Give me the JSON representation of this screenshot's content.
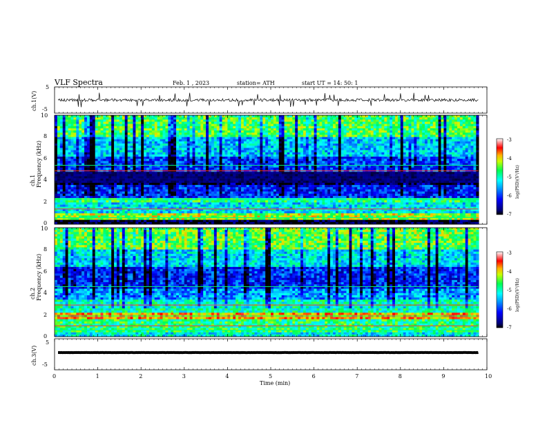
{
  "header": {
    "title": "VLF  Spectra",
    "date": "Feb. 1  , 2023",
    "station": "station= ATH",
    "start": "start  UT  =    14: 50: 1"
  },
  "panels": {
    "ch1": {
      "label": "ch.1(V)",
      "yticks": [
        "5",
        "-5"
      ]
    },
    "spec1": {
      "ylabel": "Frequency (kHz)",
      "chlabel": "ch.1",
      "yticks": [
        "0",
        "2",
        "4",
        "6",
        "8",
        "10"
      ],
      "cbar_label": "log(PSD)(V²/Hz)",
      "cbar_ticks": [
        "-3",
        "-4",
        "-5",
        "-6",
        "-7"
      ]
    },
    "spec2": {
      "ylabel": "Frequency (kHz)",
      "chlabel": "ch.2",
      "yticks": [
        "0",
        "2",
        "4",
        "6",
        "8",
        "10"
      ],
      "cbar_label": "log(PSD)(V²/Hz)",
      "cbar_ticks": [
        "-3",
        "-4",
        "-5",
        "-6",
        "-7"
      ]
    },
    "ch3": {
      "label": "ch.3(V)",
      "yticks": [
        "5",
        "-5"
      ]
    },
    "xaxis": {
      "label": "Time  (min)",
      "ticks": [
        "0",
        "1",
        "2",
        "3",
        "4",
        "5",
        "6",
        "7",
        "8",
        "9",
        "10"
      ]
    }
  },
  "chart_data": [
    {
      "type": "line",
      "name": "ch.1(V)",
      "xlabel": "Time  (min)",
      "ylabel": "ch.1(V)",
      "xlim": [
        0,
        10
      ],
      "ylim": [
        -5,
        5
      ],
      "data_end_min": 9.8,
      "mean_level": 0
    },
    {
      "type": "heatmap",
      "name": "ch.1 spectrogram",
      "xlabel": "Time  (min)",
      "ylabel": "Frequency (kHz)",
      "xlim": [
        0,
        10
      ],
      "ylim": [
        0,
        10
      ],
      "colorbar": {
        "label": "log(PSD)(V²/Hz)",
        "range": [
          -7,
          -3
        ]
      },
      "bands_kHz_level": [
        {
          "from": 0.0,
          "to": 0.4,
          "level": -7
        },
        {
          "from": 0.4,
          "to": 1.0,
          "level": -4.3
        },
        {
          "from": 1.0,
          "to": 2.0,
          "level": -5.3
        },
        {
          "from": 2.0,
          "to": 2.5,
          "level": -4.8
        },
        {
          "from": 2.5,
          "to": 3.6,
          "level": -6.1
        },
        {
          "from": 3.6,
          "to": 4.8,
          "level": -6.8
        },
        {
          "from": 4.8,
          "to": 6.2,
          "level": -6.0
        },
        {
          "from": 6.2,
          "to": 8.0,
          "level": -5.4
        },
        {
          "from": 8.0,
          "to": 10.0,
          "level": -4.6
        }
      ]
    },
    {
      "type": "heatmap",
      "name": "ch.2 spectrogram",
      "xlabel": "Time  (min)",
      "ylabel": "Frequency (kHz)",
      "xlim": [
        0,
        10
      ],
      "ylim": [
        0,
        10
      ],
      "colorbar": {
        "label": "log(PSD)(V²/Hz)",
        "range": [
          -7,
          -3
        ]
      },
      "bands_kHz_level": [
        {
          "from": 0.0,
          "to": 0.5,
          "level": -5.2
        },
        {
          "from": 0.5,
          "to": 1.6,
          "level": -4.8
        },
        {
          "from": 1.6,
          "to": 2.1,
          "level": -3.9
        },
        {
          "from": 2.1,
          "to": 3.4,
          "level": -5.0
        },
        {
          "from": 3.4,
          "to": 4.4,
          "level": -5.6
        },
        {
          "from": 4.4,
          "to": 6.4,
          "level": -6.1
        },
        {
          "from": 6.4,
          "to": 8.0,
          "level": -5.3
        },
        {
          "from": 8.0,
          "to": 10.0,
          "level": -4.5
        }
      ]
    },
    {
      "type": "line",
      "name": "ch.3(V)",
      "xlabel": "Time  (min)",
      "ylabel": "ch.3(V)",
      "xlim": [
        0,
        10
      ],
      "ylim": [
        -5,
        5
      ],
      "data_end_min": 9.8,
      "mean_level": 0
    }
  ]
}
